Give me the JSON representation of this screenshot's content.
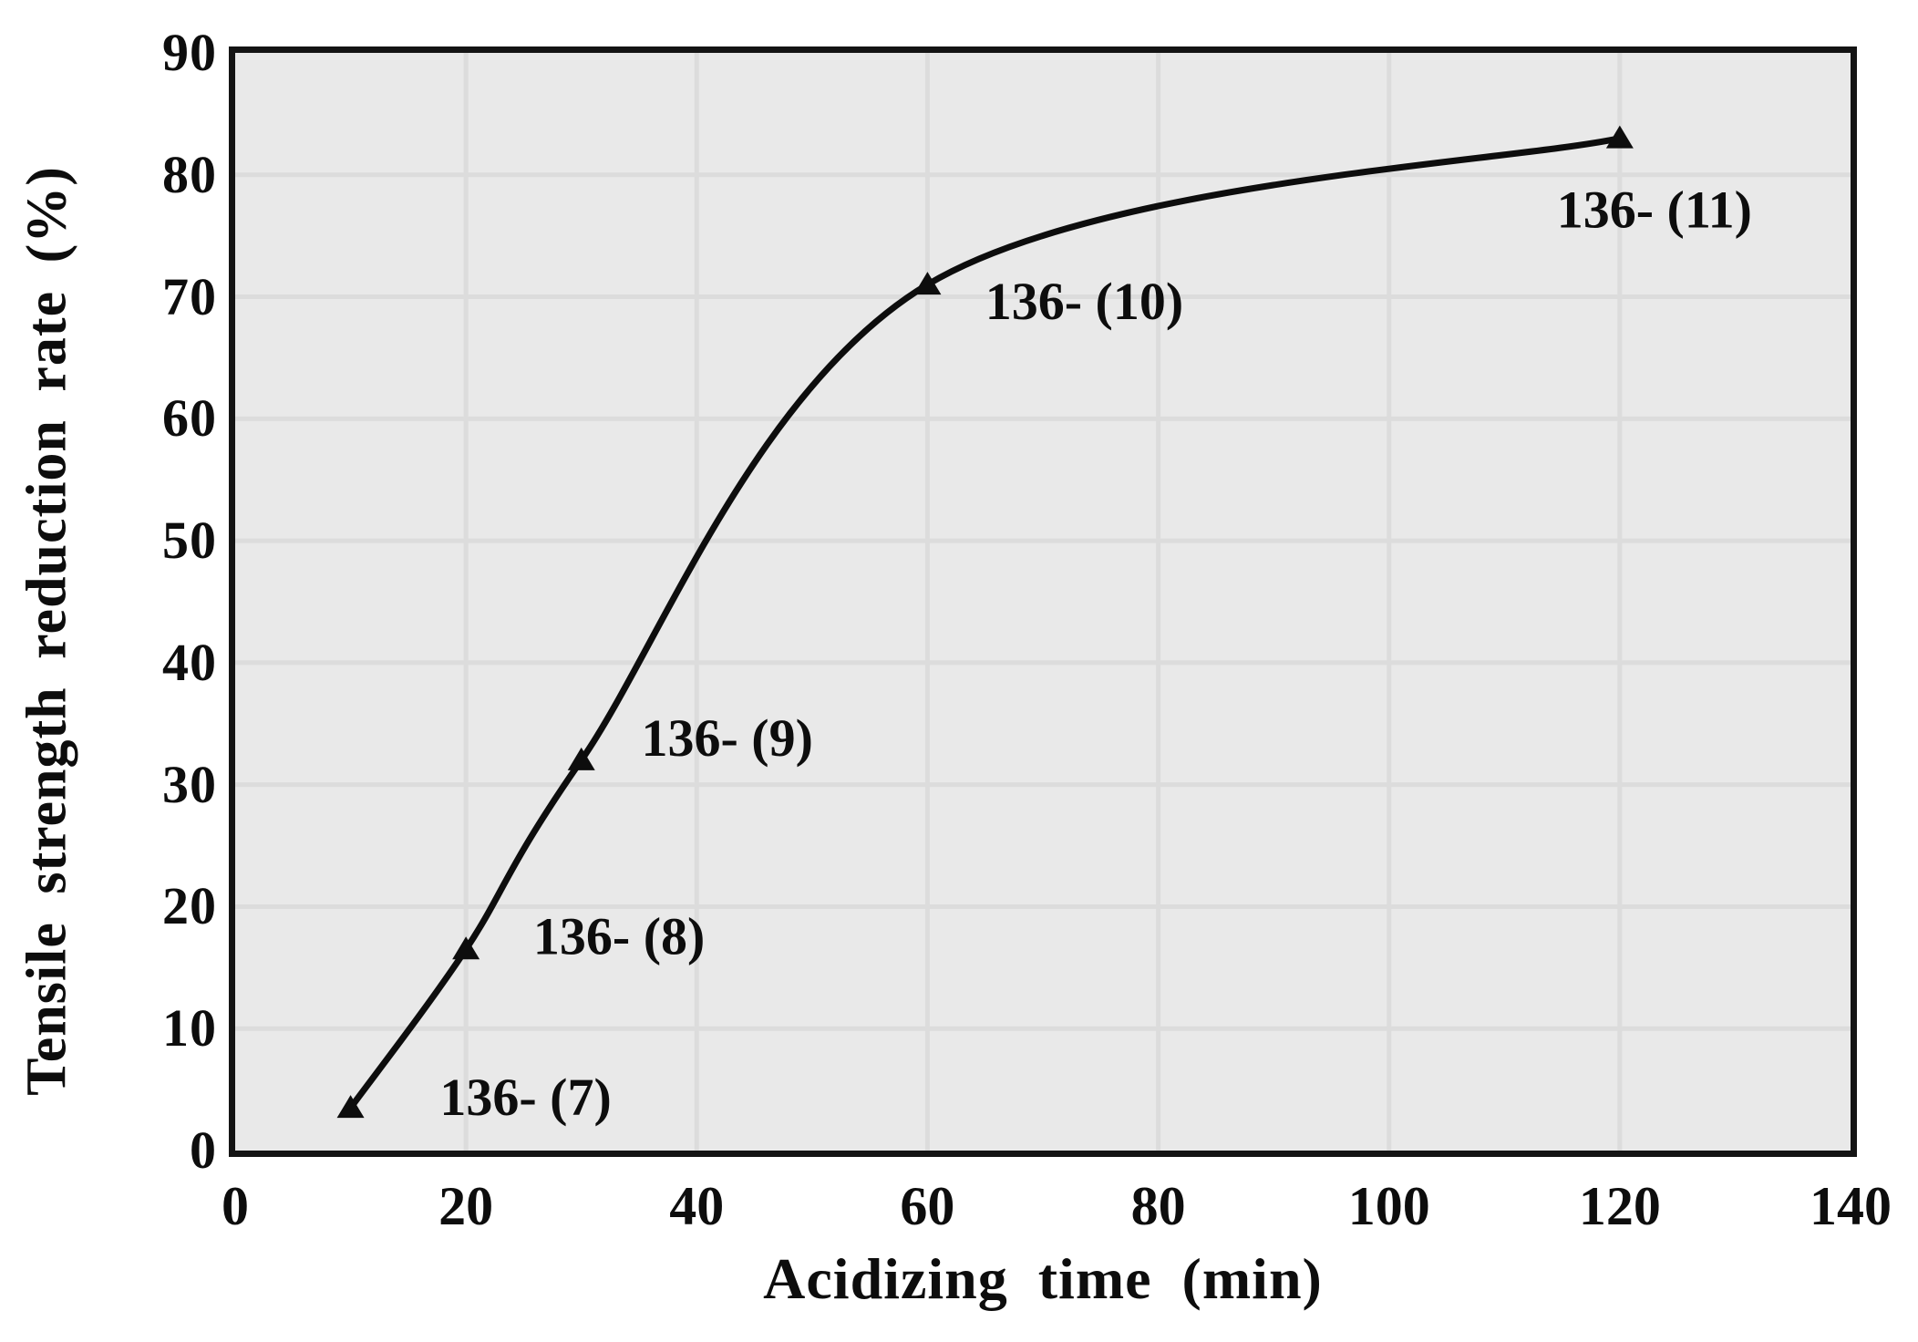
{
  "chart_data": {
    "type": "line",
    "title": "",
    "xlabel": "Acidizing time (min)",
    "ylabel": "Tensile strength reduction rate (%)",
    "xlim": [
      0,
      140
    ],
    "ylim": [
      0,
      90
    ],
    "x_ticks": [
      0,
      20,
      40,
      60,
      80,
      100,
      120,
      140
    ],
    "y_ticks": [
      0,
      10,
      20,
      30,
      40,
      50,
      60,
      70,
      80,
      90
    ],
    "grid": true,
    "legend": "none",
    "plot_background": "#e9e9e9",
    "gridline_color": "#dcdcdc",
    "line_color": "#0d0d0d",
    "marker": "triangle-up",
    "series": [
      {
        "name": "tensile strength reduction rate",
        "points": [
          {
            "x": 10,
            "y": 3.5,
            "label": "136- (7)"
          },
          {
            "x": 20,
            "y": 16.5,
            "label": "136- (8)"
          },
          {
            "x": 30,
            "y": 32,
            "label": "136- (9)"
          },
          {
            "x": 60,
            "y": 71,
            "label": "136- (10)"
          },
          {
            "x": 120,
            "y": 83,
            "label": "136- (11)"
          }
        ]
      }
    ]
  }
}
